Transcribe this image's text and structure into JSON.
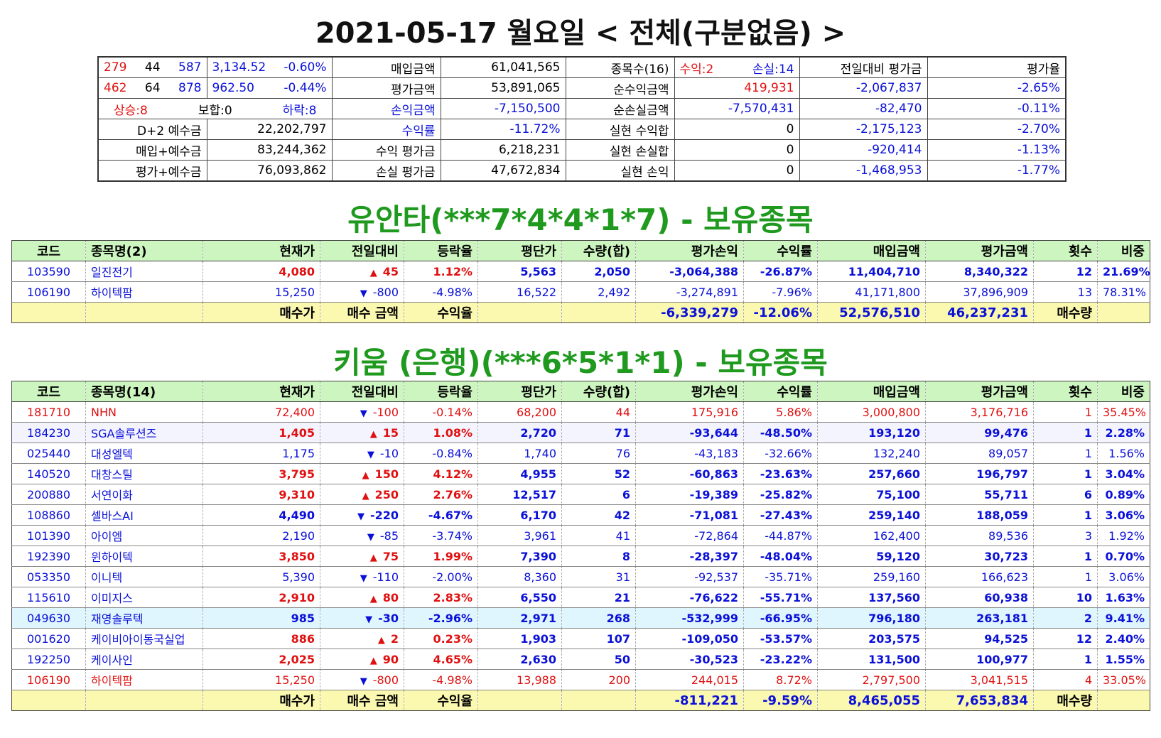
{
  "title": "2021-05-17 월요일 < 전체(구분없음) >",
  "summary": {
    "rows": [
      [
        "279",
        "44",
        "587",
        "3,134.52",
        "-0.60%",
        "매입금액",
        "61,041,565",
        "종목수(16)",
        "수익:2",
        "손실:14",
        "전일대비 평가금",
        "평가율"
      ],
      [
        "462",
        "64",
        "878",
        "962.50",
        "-0.44%",
        "평가금액",
        "53,891,065",
        "순수익금액",
        "419,931",
        "-2,067,837",
        "-2.65%"
      ],
      [
        "상승:8",
        "보합:0",
        "하락:8",
        "손익금액",
        "-7,150,500",
        "순손실금액",
        "-7,570,431",
        "-82,470",
        "-0.11%"
      ],
      [
        "D+2 예수금",
        "22,202,797",
        "수익률",
        "-11.72%",
        "실현 수익합",
        "0",
        "-2,175,123",
        "-2.70%"
      ],
      [
        "매입+예수금",
        "83,244,362",
        "수익 평가금",
        "6,218,231",
        "실현 손실합",
        "0",
        "-920,414",
        "-1.13%"
      ],
      [
        "평가+예수금",
        "76,093,862",
        "손실 평가금",
        "47,672,834",
        "실현 손익",
        "0",
        "-1,468,953",
        "-1.77%"
      ]
    ]
  },
  "section1": {
    "title": "유안타(***7*4*4*1*7) - 보유종목",
    "headers": [
      "코드",
      "종목명(2)",
      "현재가",
      "전일대비",
      "등락율",
      "평단가",
      "수량(합)",
      "평가손익",
      "수익률",
      "매입금액",
      "평가금액",
      "횟수",
      "비중"
    ],
    "rows": [
      {
        "code": "103590",
        "name": "일진전기",
        "price": "4,080",
        "dir": "▲",
        "chg": "45",
        "rate": "1.12%",
        "avg": "5,563",
        "qty": "2,050",
        "pl": "-3,064,388",
        "ret": "-26.87%",
        "buy": "11,404,710",
        "eval": "8,340,322",
        "cnt": "12",
        "weight": "21.69%"
      },
      {
        "code": "106190",
        "name": "하이텍팜",
        "price": "15,250",
        "dir": "▼",
        "chg": "-800",
        "rate": "-4.98%",
        "avg": "16,522",
        "qty": "2,492",
        "pl": "-3,274,891",
        "ret": "-7.96%",
        "buy": "41,171,800",
        "eval": "37,896,909",
        "cnt": "13",
        "weight": "78.31%"
      }
    ],
    "footer": {
      "l1": "매수가",
      "l2": "매수 금액",
      "l3": "수익율",
      "pl": "-6,339,279",
      "ret": "-12.06%",
      "buy": "52,576,510",
      "eval": "46,237,231",
      "l4": "매수량"
    }
  },
  "section2": {
    "title": "키움 (은행)(***6*5*1*1) - 보유종목",
    "headers": [
      "코드",
      "종목명(14)",
      "현재가",
      "전일대비",
      "등락율",
      "평단가",
      "수량(합)",
      "평가손익",
      "수익률",
      "매입금액",
      "평가금액",
      "횟수",
      "비중"
    ],
    "rows": [
      {
        "code": "181710",
        "name": "NHN",
        "price": "72,400",
        "dir": "▼",
        "chg": "-100",
        "rate": "-0.14%",
        "avg": "68,200",
        "qty": "44",
        "pl": "175,916",
        "ret": "5.86%",
        "buy": "3,000,800",
        "eval": "3,176,716",
        "cnt": "1",
        "weight": "35.45%"
      },
      {
        "code": "184230",
        "name": "SGA솔루션즈",
        "price": "1,405",
        "dir": "▲",
        "chg": "15",
        "rate": "1.08%",
        "avg": "2,720",
        "qty": "71",
        "pl": "-93,644",
        "ret": "-48.50%",
        "buy": "193,120",
        "eval": "99,476",
        "cnt": "1",
        "weight": "2.28%"
      },
      {
        "code": "025440",
        "name": "대성엘텍",
        "price": "1,175",
        "dir": "▼",
        "chg": "-10",
        "rate": "-0.84%",
        "avg": "1,740",
        "qty": "76",
        "pl": "-43,183",
        "ret": "-32.66%",
        "buy": "132,240",
        "eval": "89,057",
        "cnt": "1",
        "weight": "1.56%"
      },
      {
        "code": "140520",
        "name": "대창스틸",
        "price": "3,795",
        "dir": "▲",
        "chg": "150",
        "rate": "4.12%",
        "avg": "4,955",
        "qty": "52",
        "pl": "-60,863",
        "ret": "-23.63%",
        "buy": "257,660",
        "eval": "196,797",
        "cnt": "1",
        "weight": "3.04%"
      },
      {
        "code": "200880",
        "name": "서연이화",
        "price": "9,310",
        "dir": "▲",
        "chg": "250",
        "rate": "2.76%",
        "avg": "12,517",
        "qty": "6",
        "pl": "-19,389",
        "ret": "-25.82%",
        "buy": "75,100",
        "eval": "55,711",
        "cnt": "6",
        "weight": "0.89%"
      },
      {
        "code": "108860",
        "name": "셀바스AI",
        "price": "4,490",
        "dir": "▼",
        "chg": "-220",
        "rate": "-4.67%",
        "avg": "6,170",
        "qty": "42",
        "pl": "-71,081",
        "ret": "-27.43%",
        "buy": "259,140",
        "eval": "188,059",
        "cnt": "1",
        "weight": "3.06%"
      },
      {
        "code": "101390",
        "name": "아이엠",
        "price": "2,190",
        "dir": "▼",
        "chg": "-85",
        "rate": "-3.74%",
        "avg": "3,961",
        "qty": "41",
        "pl": "-72,864",
        "ret": "-44.87%",
        "buy": "162,400",
        "eval": "89,536",
        "cnt": "3",
        "weight": "1.92%"
      },
      {
        "code": "192390",
        "name": "윈하이텍",
        "price": "3,850",
        "dir": "▲",
        "chg": "75",
        "rate": "1.99%",
        "avg": "7,390",
        "qty": "8",
        "pl": "-28,397",
        "ret": "-48.04%",
        "buy": "59,120",
        "eval": "30,723",
        "cnt": "1",
        "weight": "0.70%"
      },
      {
        "code": "053350",
        "name": "이니텍",
        "price": "5,390",
        "dir": "▼",
        "chg": "-110",
        "rate": "-2.00%",
        "avg": "8,360",
        "qty": "31",
        "pl": "-92,537",
        "ret": "-35.71%",
        "buy": "259,160",
        "eval": "166,623",
        "cnt": "1",
        "weight": "3.06%"
      },
      {
        "code": "115610",
        "name": "이미지스",
        "price": "2,910",
        "dir": "▲",
        "chg": "80",
        "rate": "2.83%",
        "avg": "6,550",
        "qty": "21",
        "pl": "-76,622",
        "ret": "-55.71%",
        "buy": "137,560",
        "eval": "60,938",
        "cnt": "10",
        "weight": "1.63%"
      },
      {
        "code": "049630",
        "name": "재영솔루텍",
        "price": "985",
        "dir": "▼",
        "chg": "-30",
        "rate": "-2.96%",
        "avg": "2,971",
        "qty": "268",
        "pl": "-532,999",
        "ret": "-66.95%",
        "buy": "796,180",
        "eval": "263,181",
        "cnt": "2",
        "weight": "9.41%"
      },
      {
        "code": "001620",
        "name": "케이비아이동국실업",
        "price": "886",
        "dir": "▲",
        "chg": "2",
        "rate": "0.23%",
        "avg": "1,903",
        "qty": "107",
        "pl": "-109,050",
        "ret": "-53.57%",
        "buy": "203,575",
        "eval": "94,525",
        "cnt": "12",
        "weight": "2.40%"
      },
      {
        "code": "192250",
        "name": "케이사인",
        "price": "2,025",
        "dir": "▲",
        "chg": "90",
        "rate": "4.65%",
        "avg": "2,630",
        "qty": "50",
        "pl": "-30,523",
        "ret": "-23.22%",
        "buy": "131,500",
        "eval": "100,977",
        "cnt": "1",
        "weight": "1.55%"
      },
      {
        "code": "106190",
        "name": "하이텍팜",
        "price": "15,250",
        "dir": "▼",
        "chg": "-800",
        "rate": "-4.98%",
        "avg": "13,988",
        "qty": "200",
        "pl": "244,015",
        "ret": "8.72%",
        "buy": "2,797,500",
        "eval": "3,041,515",
        "cnt": "4",
        "weight": "33.05%"
      }
    ],
    "footer": {
      "l1": "매수가",
      "l2": "매수 금액",
      "l3": "수익율",
      "pl": "-811,221",
      "ret": "-9.59%",
      "buy": "8,465,055",
      "eval": "7,653,834",
      "l4": "매수량"
    }
  }
}
